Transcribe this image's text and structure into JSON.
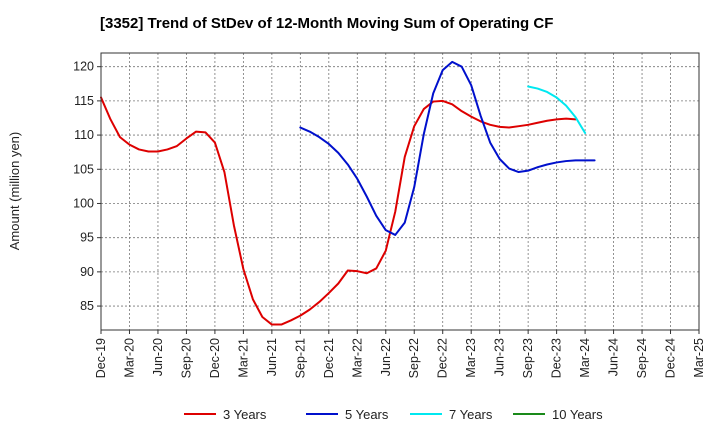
{
  "chart_data": {
    "type": "line",
    "title": "[3352]  Trend of StDev of 12-Month Moving Sum of Operating CF",
    "ylabel": "Amount (million yen)",
    "xlabel": "",
    "ylim": [
      81.5,
      122
    ],
    "yticks": [
      85,
      90,
      95,
      100,
      105,
      110,
      115,
      120
    ],
    "xticks": [
      "Dec-19",
      "Mar-20",
      "Jun-20",
      "Sep-20",
      "Dec-20",
      "Mar-21",
      "Jun-21",
      "Sep-21",
      "Dec-21",
      "Mar-22",
      "Jun-22",
      "Sep-22",
      "Dec-22",
      "Mar-23",
      "Jun-23",
      "Sep-23",
      "Dec-23",
      "Mar-24",
      "Jun-24",
      "Sep-24",
      "Dec-24",
      "Mar-25"
    ],
    "grid": true,
    "legend_position": "bottom",
    "series": [
      {
        "name": "3 Years",
        "color": "#dd0000",
        "start_index": 0,
        "values": [
          115.5,
          112.3,
          109.7,
          108.6,
          107.9,
          107.6,
          107.6,
          107.9,
          108.4,
          109.5,
          110.5,
          110.4,
          108.9,
          104.6,
          96.8,
          90.4,
          86.0,
          83.4,
          82.3,
          82.3,
          82.9,
          83.6,
          84.5,
          85.6,
          86.9,
          88.3,
          90.2,
          90.1,
          89.8,
          90.5,
          93.1,
          98.8,
          106.8,
          111.3,
          113.8,
          114.9,
          115.0,
          114.5,
          113.5,
          112.7,
          112.0,
          111.5,
          111.2,
          111.1,
          111.3,
          111.5,
          111.8,
          112.1,
          112.3,
          112.4,
          112.3
        ]
      },
      {
        "name": "5 Years",
        "color": "#0010cc",
        "start_index": 21,
        "values": [
          111.1,
          110.5,
          109.7,
          108.7,
          107.4,
          105.7,
          103.6,
          101.0,
          98.2,
          96.1,
          95.4,
          97.2,
          102.4,
          110.1,
          116.1,
          119.5,
          120.7,
          120.0,
          117.3,
          112.8,
          108.9,
          106.5,
          105.1,
          104.6,
          104.8,
          105.3,
          105.7,
          106.0,
          106.2,
          106.3,
          106.3,
          106.3
        ]
      },
      {
        "name": "7 Years",
        "color": "#00e8f0",
        "start_index": 45,
        "values": [
          117.1,
          116.8,
          116.3,
          115.5,
          114.3,
          112.6,
          110.3
        ]
      },
      {
        "name": "10 Years",
        "color": "#1a8a1a",
        "start_index": 0,
        "values": []
      }
    ]
  }
}
